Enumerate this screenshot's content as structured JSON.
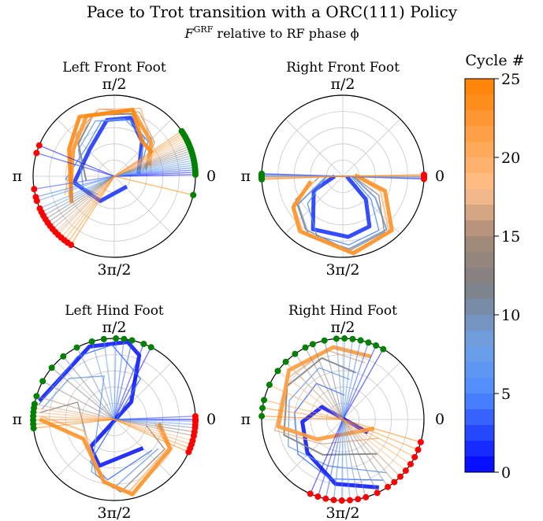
{
  "figure": {
    "title": "Pace to Trot transition with a ORC(111) Policy",
    "subtitle_symbol": "F",
    "subtitle_superscript": "GRF",
    "subtitle_text": " relative to RF phase ϕ"
  },
  "angle_labels": {
    "top": "π/2",
    "left": "π",
    "right": "0",
    "bottom": "3π/2"
  },
  "colorbar": {
    "label": "Cycle #",
    "ticks": [
      "0",
      "5",
      "10",
      "15",
      "20",
      "25"
    ],
    "min": 0,
    "max": 25,
    "colors": [
      "#0000ff",
      "#ff8000"
    ]
  },
  "chart_data": [
    {
      "type": "polar-line",
      "title": "Left Front Foot",
      "start_marker_color": "#008000",
      "end_marker_color": "#ff0000",
      "series": [
        {
          "cycle": 2,
          "points": [
            [
              0.1,
              0.3
            ],
            [
              0.9,
              0.55
            ],
            [
              1.3,
              0.75
            ],
            [
              1.7,
              0.7
            ],
            [
              2.3,
              0.45
            ],
            [
              3.3,
              0.5
            ],
            [
              4.2,
              0.35
            ],
            [
              5.6,
              0.2
            ]
          ]
        },
        {
          "cycle": 5,
          "points": [
            [
              0.1,
              0.3
            ],
            [
              0.8,
              0.6
            ],
            [
              1.3,
              0.72
            ],
            [
              1.8,
              0.7
            ],
            [
              2.3,
              0.5
            ],
            [
              3.2,
              0.6
            ],
            [
              4.0,
              0.3
            ]
          ]
        },
        {
          "cycle": 8,
          "points": [
            [
              0.2,
              0.3
            ],
            [
              0.9,
              0.6
            ],
            [
              1.4,
              0.72
            ],
            [
              1.9,
              0.72
            ],
            [
              2.5,
              0.55
            ],
            [
              3.4,
              0.4
            ]
          ]
        },
        {
          "cycle": 12,
          "points": [
            [
              0.2,
              0.4
            ],
            [
              0.8,
              0.65
            ],
            [
              1.3,
              0.8
            ],
            [
              1.9,
              0.8
            ],
            [
              2.4,
              0.6
            ],
            [
              3.3,
              0.35
            ]
          ]
        },
        {
          "cycle": 16,
          "points": [
            [
              0.15,
              0.35
            ],
            [
              0.7,
              0.65
            ],
            [
              1.2,
              0.85
            ],
            [
              1.8,
              0.85
            ],
            [
              2.3,
              0.7
            ],
            [
              3.4,
              0.55
            ]
          ]
        },
        {
          "cycle": 19,
          "points": [
            [
              0.1,
              0.45
            ],
            [
              0.7,
              0.6
            ],
            [
              1.2,
              0.9
            ],
            [
              1.8,
              0.85
            ],
            [
              2.4,
              0.65
            ],
            [
              3.5,
              0.65
            ]
          ]
        },
        {
          "cycle": 22,
          "points": [
            [
              0.3,
              0.45
            ],
            [
              0.75,
              0.62
            ],
            [
              1.3,
              0.85
            ],
            [
              2.0,
              0.82
            ],
            [
              2.6,
              0.6
            ],
            [
              3.6,
              0.6
            ]
          ]
        },
        {
          "cycle": 24,
          "points": [
            [
              0.55,
              0.55
            ],
            [
              0.9,
              0.55
            ],
            [
              1.3,
              0.85
            ],
            [
              2.1,
              0.85
            ],
            [
              2.6,
              0.65
            ],
            [
              3.7,
              0.62
            ]
          ]
        }
      ],
      "start_angles": [
        0.02,
        0.05,
        0.08,
        0.11,
        0.14,
        0.17,
        0.2,
        0.23,
        0.26,
        0.29,
        0.32,
        0.35,
        0.38,
        0.41,
        0.44,
        0.47,
        0.5,
        0.53,
        0.56,
        0.59,
        6.05
      ],
      "end_angles": [
        2.75,
        2.85,
        3.3,
        3.4,
        3.45,
        3.55,
        3.6,
        3.65,
        3.7,
        3.75,
        3.8,
        3.85,
        3.9,
        3.95,
        4.0,
        4.05,
        4.1,
        4.15
      ]
    },
    {
      "type": "polar-line",
      "title": "Right Front Foot",
      "start_marker_color": "#008000",
      "end_marker_color": "#ff0000",
      "series": [
        {
          "cycle": 2,
          "points": [
            [
              0.0,
              0.05
            ],
            [
              5.5,
              0.4
            ],
            [
              5.2,
              0.7
            ],
            [
              4.8,
              0.75
            ],
            [
              4.2,
              0.75
            ],
            [
              3.6,
              0.4
            ],
            [
              3.14,
              0.1
            ]
          ]
        },
        {
          "cycle": 5,
          "points": [
            [
              0.02,
              0.1
            ],
            [
              5.6,
              0.45
            ],
            [
              5.3,
              0.8
            ],
            [
              4.8,
              0.85
            ],
            [
              4.3,
              0.8
            ],
            [
              3.8,
              0.55
            ],
            [
              3.14,
              0.2
            ]
          ]
        },
        {
          "cycle": 9,
          "points": [
            [
              0.03,
              0.12
            ],
            [
              5.7,
              0.48
            ],
            [
              5.4,
              0.85
            ],
            [
              4.8,
              0.9
            ],
            [
              4.2,
              0.85
            ],
            [
              3.7,
              0.65
            ],
            [
              3.14,
              0.2
            ]
          ]
        },
        {
          "cycle": 13,
          "points": [
            [
              0.05,
              0.12
            ],
            [
              5.8,
              0.5
            ],
            [
              5.35,
              0.86
            ],
            [
              4.8,
              0.92
            ],
            [
              4.1,
              0.8
            ],
            [
              3.6,
              0.65
            ],
            [
              3.2,
              0.3
            ]
          ]
        },
        {
          "cycle": 18,
          "points": [
            [
              0.05,
              0.15
            ],
            [
              5.9,
              0.5
            ],
            [
              5.4,
              0.9
            ],
            [
              4.8,
              0.95
            ],
            [
              4.1,
              0.85
            ],
            [
              3.65,
              0.7
            ],
            [
              3.3,
              0.35
            ]
          ]
        },
        {
          "cycle": 23,
          "points": [
            [
              0.1,
              0.15
            ],
            [
              5.95,
              0.55
            ],
            [
              5.45,
              0.9
            ],
            [
              4.85,
              0.96
            ],
            [
              4.05,
              0.86
            ],
            [
              3.7,
              0.72
            ],
            [
              3.3,
              0.4
            ]
          ]
        }
      ],
      "start_angles": [
        3.11,
        3.12,
        3.13,
        3.14,
        3.15,
        3.16,
        3.17,
        3.18
      ],
      "end_angles": [
        6.25,
        6.26,
        6.27,
        6.28,
        0.0,
        0.01,
        0.02
      ]
    },
    {
      "type": "polar-line",
      "title": "Left Hind Foot",
      "start_marker_color": "#008000",
      "end_marker_color": "#ff0000",
      "series": [
        {
          "cycle": 1,
          "points": [
            [
              2.9,
              0.95
            ],
            [
              1.9,
              0.95
            ],
            [
              1.4,
              0.97
            ],
            [
              1.2,
              0.85
            ],
            [
              0.8,
              0.3
            ],
            [
              4.0,
              0.45
            ],
            [
              4.4,
              0.6
            ],
            [
              5.5,
              0.5
            ]
          ]
        },
        {
          "cycle": 4,
          "points": [
            [
              2.95,
              0.95
            ],
            [
              2.1,
              0.9
            ],
            [
              1.6,
              0.92
            ],
            [
              1.0,
              0.6
            ],
            [
              4.2,
              0.6
            ],
            [
              4.6,
              0.75
            ],
            [
              5.6,
              0.6
            ]
          ]
        },
        {
          "cycle": 8,
          "points": [
            [
              3.0,
              0.9
            ],
            [
              2.4,
              0.75
            ],
            [
              1.8,
              0.55
            ],
            [
              4.3,
              0.7
            ],
            [
              4.7,
              0.85
            ],
            [
              5.7,
              0.65
            ]
          ]
        },
        {
          "cycle": 13,
          "points": [
            [
              3.05,
              0.92
            ],
            [
              2.7,
              0.5
            ],
            [
              4.4,
              0.72
            ],
            [
              4.8,
              0.9
            ],
            [
              5.75,
              0.72
            ],
            [
              6.1,
              0.4
            ]
          ]
        },
        {
          "cycle": 18,
          "points": [
            [
              3.1,
              0.9
            ],
            [
              3.5,
              0.4
            ],
            [
              4.5,
              0.75
            ],
            [
              4.9,
              0.92
            ],
            [
              5.8,
              0.75
            ],
            [
              6.2,
              0.5
            ]
          ]
        },
        {
          "cycle": 23,
          "points": [
            [
              3.14,
              0.92
            ],
            [
              3.7,
              0.45
            ],
            [
              4.55,
              0.78
            ],
            [
              4.95,
              0.95
            ],
            [
              5.8,
              0.78
            ],
            [
              6.2,
              0.55
            ]
          ]
        }
      ],
      "start_angles": [
        1.1,
        1.2,
        1.35,
        1.45,
        1.55,
        1.7,
        1.85,
        2.05,
        2.25,
        2.45,
        2.65,
        2.85,
        2.95,
        3.0,
        3.05,
        3.1,
        3.15,
        3.2,
        3.25
      ],
      "end_angles": [
        0.0,
        0.04,
        6.26,
        6.22,
        6.18,
        6.13,
        6.08,
        6.02,
        5.97,
        5.92,
        5.87
      ]
    },
    {
      "type": "polar-line",
      "title": "Right Hind Foot",
      "start_marker_color": "#008000",
      "end_marker_color": "#ff0000",
      "series": [
        {
          "cycle": 1,
          "points": [
            [
              5.2,
              0.95
            ],
            [
              4.6,
              0.8
            ],
            [
              3.9,
              0.6
            ],
            [
              3.2,
              0.5
            ],
            [
              2.6,
              0.3
            ],
            [
              5.8,
              0.35
            ]
          ]
        },
        {
          "cycle": 4,
          "points": [
            [
              5.3,
              0.9
            ],
            [
              4.5,
              0.75
            ],
            [
              3.8,
              0.7
            ],
            [
              3.0,
              0.6
            ],
            [
              2.2,
              0.55
            ],
            [
              1.5,
              0.3
            ]
          ]
        },
        {
          "cycle": 8,
          "points": [
            [
              5.4,
              0.85
            ],
            [
              4.4,
              0.6
            ],
            [
              3.6,
              0.75
            ],
            [
              2.8,
              0.7
            ],
            [
              2.0,
              0.7
            ],
            [
              1.4,
              0.5
            ]
          ]
        },
        {
          "cycle": 12,
          "points": [
            [
              5.5,
              0.6
            ],
            [
              4.2,
              0.5
            ],
            [
              3.4,
              0.75
            ],
            [
              2.6,
              0.8
            ],
            [
              1.9,
              0.8
            ],
            [
              1.3,
              0.6
            ]
          ]
        },
        {
          "cycle": 17,
          "points": [
            [
              5.8,
              0.5
            ],
            [
              4.0,
              0.4
            ],
            [
              3.3,
              0.85
            ],
            [
              2.5,
              0.85
            ],
            [
              1.8,
              0.88
            ],
            [
              1.2,
              0.75
            ]
          ]
        },
        {
          "cycle": 22,
          "points": [
            [
              6.0,
              0.4
            ],
            [
              3.8,
              0.4
            ],
            [
              3.25,
              0.8
            ],
            [
              2.4,
              0.9
            ],
            [
              1.7,
              0.9
            ],
            [
              1.15,
              0.85
            ]
          ]
        }
      ],
      "start_angles": [
        1.05,
        1.15,
        1.25,
        1.35,
        1.45,
        1.55,
        1.65,
        1.8,
        1.95,
        2.05,
        2.2,
        2.35,
        2.5,
        2.7,
        2.9,
        3.0,
        3.1
      ],
      "end_angles": [
        4.3,
        4.4,
        4.5,
        4.6,
        4.7,
        4.8,
        4.9,
        5.0,
        5.15,
        5.3,
        5.4,
        5.5,
        5.6,
        5.7,
        5.8,
        5.9,
        6.0
      ]
    }
  ]
}
